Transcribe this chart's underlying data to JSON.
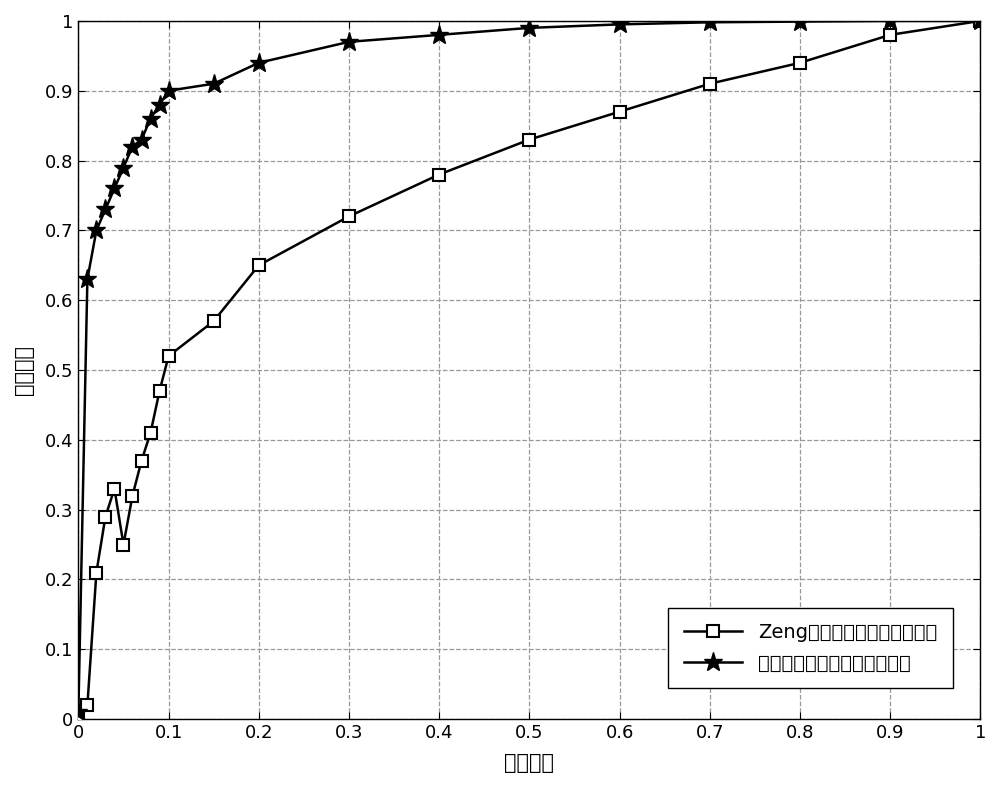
{
  "line1_x": [
    0,
    0.01,
    0.02,
    0.03,
    0.04,
    0.05,
    0.06,
    0.07,
    0.08,
    0.09,
    0.1,
    0.15,
    0.2,
    0.3,
    0.4,
    0.5,
    0.6,
    0.7,
    0.8,
    0.9,
    1.0
  ],
  "line1_y": [
    0.0,
    0.02,
    0.21,
    0.29,
    0.33,
    0.25,
    0.32,
    0.37,
    0.41,
    0.47,
    0.52,
    0.57,
    0.65,
    0.72,
    0.78,
    0.83,
    0.87,
    0.91,
    0.94,
    0.98,
    1.0
  ],
  "line2_x": [
    0,
    0.01,
    0.02,
    0.03,
    0.04,
    0.05,
    0.06,
    0.07,
    0.08,
    0.09,
    0.1,
    0.15,
    0.2,
    0.3,
    0.4,
    0.5,
    0.6,
    0.7,
    0.8,
    0.9,
    1.0
  ],
  "line2_y": [
    0.01,
    0.63,
    0.7,
    0.73,
    0.76,
    0.79,
    0.82,
    0.83,
    0.86,
    0.88,
    0.9,
    0.91,
    0.94,
    0.97,
    0.98,
    0.99,
    0.995,
    0.998,
    0.999,
    1.0,
    1.0
  ],
  "xlabel": "虚警概率",
  "ylabel": "检测概率",
  "legend1": "Zeng等人提出的频谱感知方法",
  "legend2": "本发明所提出的频谱感知方法",
  "line_color": "#000000",
  "xlim": [
    0,
    1
  ],
  "ylim": [
    0,
    1
  ],
  "xticks": [
    0,
    0.1,
    0.2,
    0.3,
    0.4,
    0.5,
    0.6,
    0.7,
    0.8,
    0.9,
    1.0
  ],
  "yticks": [
    0,
    0.1,
    0.2,
    0.3,
    0.4,
    0.5,
    0.6,
    0.7,
    0.8,
    0.9,
    1.0
  ],
  "grid_color": "#999999",
  "background_color": "#ffffff",
  "font_size_ticks": 13,
  "font_size_labels": 15,
  "font_size_legend": 14
}
